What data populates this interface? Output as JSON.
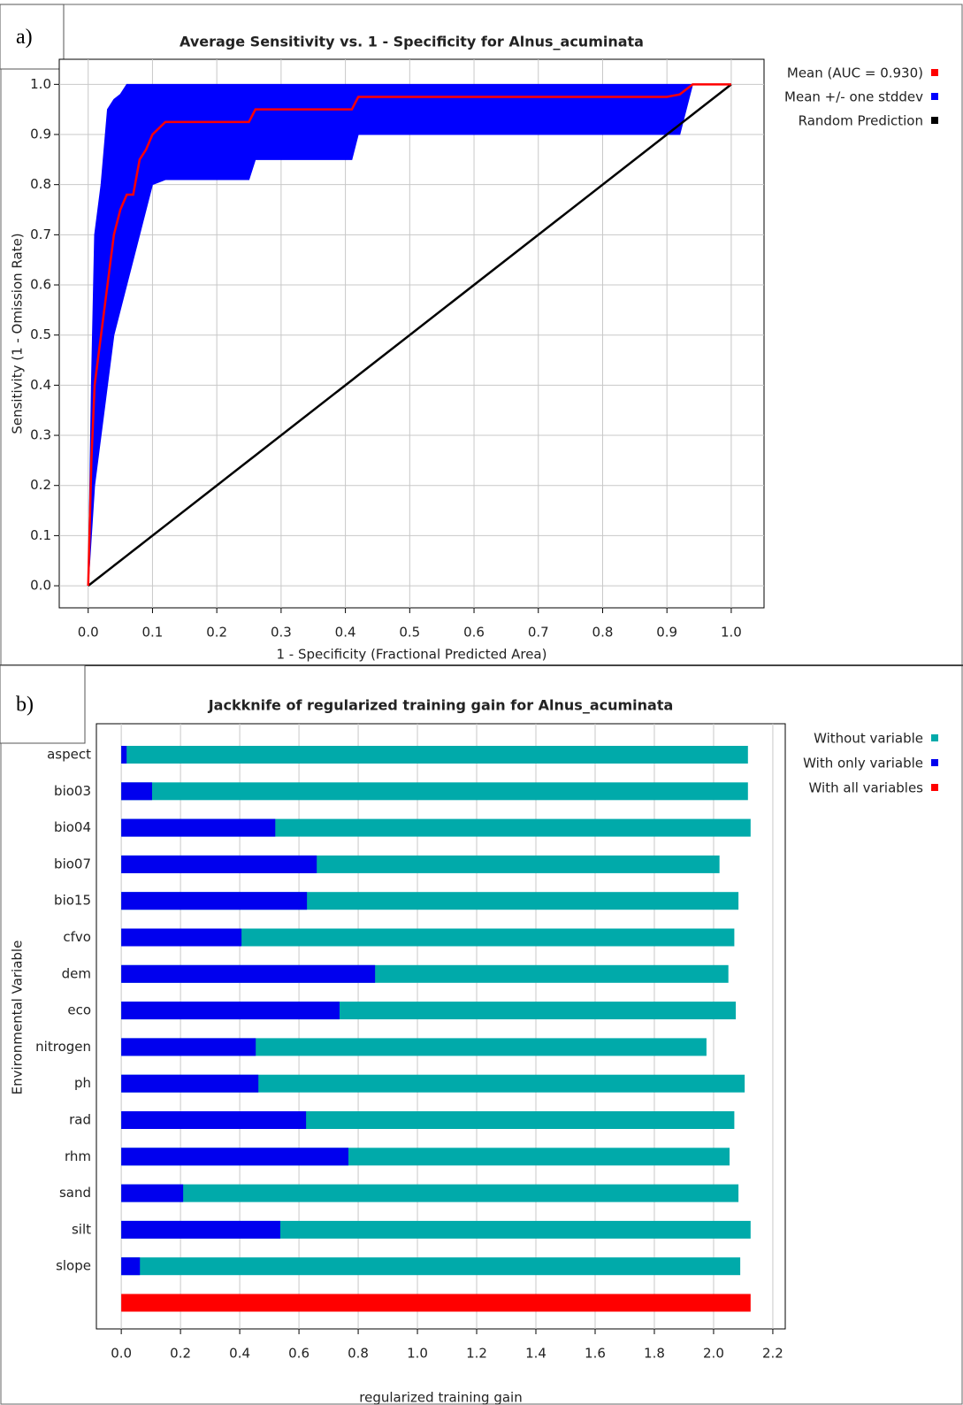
{
  "chart_data": [
    {
      "panel_label": "a)",
      "type": "line",
      "title": "Average Sensitivity vs. 1 - Specificity for Alnus_acuminata",
      "x_label": "1 - Specificity (Fractional Predicted Area)",
      "y_label": "Sensitivity (1 - Omission Rate)",
      "x": [
        0,
        0.005,
        0.01,
        0.02,
        0.03,
        0.04,
        0.05,
        0.06,
        0.07,
        0.08,
        0.09,
        0.1,
        0.12,
        0.2,
        0.25,
        0.26,
        0.41,
        0.42,
        0.9,
        0.92,
        0.94,
        1.0
      ],
      "series": [
        {
          "name": "Mean +/- one stddev",
          "color": "#0000ff",
          "upper": [
            0,
            0.4,
            0.7,
            0.8,
            0.95,
            0.97,
            0.98,
            1.0,
            1.0,
            1.0,
            1.0,
            1.0,
            1.0,
            1.0,
            1.0,
            1.0,
            1.0,
            1.0,
            1.0,
            1.0,
            1.0,
            1.0
          ],
          "lower": [
            0,
            0.1,
            0.2,
            0.3,
            0.4,
            0.5,
            0.55,
            0.6,
            0.65,
            0.7,
            0.75,
            0.8,
            0.81,
            0.81,
            0.81,
            0.85,
            0.85,
            0.9,
            0.9,
            0.9,
            1.0,
            1.0
          ]
        },
        {
          "name": "Random Prediction",
          "color": "#000000",
          "values": [
            0,
            0.005,
            0.01,
            0.02,
            0.03,
            0.04,
            0.05,
            0.06,
            0.07,
            0.08,
            0.09,
            0.1,
            0.12,
            0.2,
            0.25,
            0.26,
            0.41,
            0.42,
            0.9,
            0.92,
            0.94,
            1.0
          ]
        },
        {
          "name": "Mean (AUC = 0.930)",
          "color": "#ff0000",
          "values": [
            0,
            0.25,
            0.4,
            0.5,
            0.6,
            0.7,
            0.75,
            0.78,
            0.78,
            0.85,
            0.87,
            0.9,
            0.925,
            0.925,
            0.925,
            0.95,
            0.95,
            0.975,
            0.975,
            0.98,
            1.0,
            1.0
          ]
        }
      ],
      "legend_order": [
        2,
        0,
        1
      ],
      "xlim": [
        -0.045,
        1.051
      ],
      "ylim": [
        -0.044,
        1.05
      ],
      "xticks": [
        {
          "value": 0,
          "label": "0.0"
        },
        {
          "value": 0.1,
          "label": "0.1"
        },
        {
          "value": 0.2,
          "label": "0.2"
        },
        {
          "value": 0.3,
          "label": "0.3"
        },
        {
          "value": 0.4,
          "label": "0.4"
        },
        {
          "value": 0.5,
          "label": "0.5"
        },
        {
          "value": 0.6,
          "label": "0.6"
        },
        {
          "value": 0.7,
          "label": "0.7"
        },
        {
          "value": 0.8,
          "label": "0.8"
        },
        {
          "value": 0.9,
          "label": "0.9"
        },
        {
          "value": 1,
          "label": "1.0"
        }
      ],
      "yticks": [
        {
          "value": 0,
          "label": "0.0"
        },
        {
          "value": 0.1,
          "label": "0.1"
        },
        {
          "value": 0.2,
          "label": "0.2"
        },
        {
          "value": 0.3,
          "label": "0.3"
        },
        {
          "value": 0.4,
          "label": "0.4"
        },
        {
          "value": 0.5,
          "label": "0.5"
        },
        {
          "value": 0.6,
          "label": "0.6"
        },
        {
          "value": 0.7,
          "label": "0.7"
        },
        {
          "value": 0.8,
          "label": "0.8"
        },
        {
          "value": 0.9,
          "label": "0.9"
        },
        {
          "value": 1,
          "label": "1.0"
        }
      ],
      "grid": true,
      "legend": "right"
    },
    {
      "panel_label": "b)",
      "type": "bar",
      "orientation": "horizontal",
      "title": "Jackknife of regularized training gain for Alnus_acuminata",
      "x_label": "regularized training gain",
      "y_label": "Environmental Variable",
      "categories": [
        "aspect",
        "bio03",
        "bio04",
        "bio07",
        "bio15",
        "cfvo",
        "dem",
        "eco",
        "nitrogen",
        "ph",
        "rad",
        "rhm",
        "sand",
        "silt",
        "slope",
        null
      ],
      "series": [
        {
          "name": "Without variable",
          "color": "#00aaaa",
          "values": [
            2.116,
            2.116,
            2.125,
            2.02,
            2.084,
            2.07,
            2.05,
            2.075,
            1.976,
            2.105,
            2.07,
            2.054,
            2.084,
            2.125,
            2.09,
            null
          ]
        },
        {
          "name": "With only variable",
          "color": "#0000ee",
          "values": [
            0.018,
            0.104,
            0.52,
            0.66,
            0.627,
            0.406,
            0.857,
            0.737,
            0.454,
            0.463,
            0.624,
            0.767,
            0.209,
            0.537,
            0.063,
            null
          ]
        },
        {
          "name": "With all variables",
          "color": "#ff0000",
          "values": [
            null,
            null,
            null,
            null,
            null,
            null,
            null,
            null,
            null,
            null,
            null,
            null,
            null,
            null,
            null,
            2.125
          ]
        }
      ],
      "xlim": [
        -0.084,
        2.242
      ],
      "xticks": [
        {
          "value": 0,
          "label": "0.0"
        },
        {
          "value": 0.2,
          "label": "0.2"
        },
        {
          "value": 0.4,
          "label": "0.4"
        },
        {
          "value": 0.6,
          "label": "0.6"
        },
        {
          "value": 0.8,
          "label": "0.8"
        },
        {
          "value": 1,
          "label": "1.0"
        },
        {
          "value": 1.2,
          "label": "1.2"
        },
        {
          "value": 1.4,
          "label": "1.4"
        },
        {
          "value": 1.6,
          "label": "1.6"
        },
        {
          "value": 1.8,
          "label": "1.8"
        },
        {
          "value": 2,
          "label": "2.0"
        },
        {
          "value": 2.2,
          "label": "2.2"
        }
      ],
      "grid": true,
      "legend": "right"
    }
  ]
}
